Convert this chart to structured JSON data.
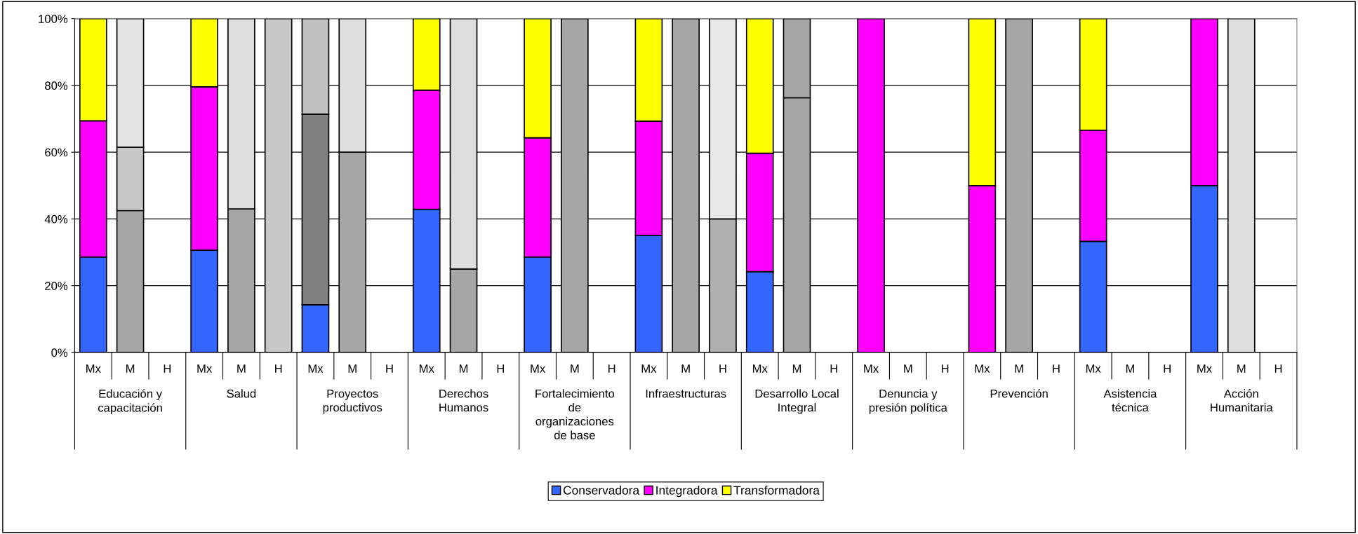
{
  "chart_data": {
    "type": "bar",
    "stacked": true,
    "categories": [
      "Mx",
      "M",
      "H",
      "Mx",
      "M",
      "H",
      "Mx",
      "M",
      "H",
      "Mx",
      "M",
      "H",
      "Mx",
      "M",
      "H",
      "Mx",
      "M",
      "H",
      "Mx",
      "M",
      "H",
      "Mx",
      "M",
      "H",
      "Mx",
      "M",
      "H",
      "Mx",
      "M",
      "H",
      "Mx",
      "M",
      "H"
    ],
    "annotations": [
      "Educación y\ncapacitación",
      "Salud",
      "Proyectos\nproductivos",
      "Derechos\nHumanos",
      "Fortalecimiento\nde\norganizaciones\nde base",
      "Infraestructuras",
      "Desarrollo Local\nIntegral",
      "Denuncia y\npresión política",
      "Prevención",
      "Asistencia\ntécnica",
      "Acción\nHumanitaria"
    ],
    "series": [
      {
        "name": "Conservadora",
        "color": "#3366ff",
        "values": [
          28.6,
          42.5,
          null,
          30.6,
          43,
          100,
          14.3,
          60,
          null,
          42.9,
          25,
          null,
          28.6,
          100,
          null,
          35.1,
          100,
          40,
          24.2,
          76.3,
          null,
          null,
          null,
          null,
          null,
          100,
          null,
          33.3,
          null,
          null,
          50,
          null,
          null
        ],
        "colors": [
          "#3366ff",
          "#a6a6a6",
          "#b0b0b0",
          "#3366ff",
          "#a6a6a6",
          "#c8c8c8",
          "#3366ff",
          "#a6a6a6",
          "#b0b0b0",
          "#3366ff",
          "#a6a6a6",
          "#b0b0b0",
          "#3366ff",
          "#a6a6a6",
          "#b0b0b0",
          "#3366ff",
          "#a6a6a6",
          "#b0b0b0",
          "#3366ff",
          "#a6a6a6",
          "#b0b0b0",
          "#3366ff",
          "#a6a6a6",
          "#b0b0b0",
          "#3366ff",
          "#a6a6a6",
          "#b0b0b0",
          "#3366ff",
          "#a6a6a6",
          "#b0b0b0",
          "#3366ff",
          "#a6a6a6",
          "#b0b0b0"
        ]
      },
      {
        "name": "Integradora",
        "color": "#ff00ff",
        "values": [
          40.8,
          19,
          null,
          49,
          57,
          null,
          57.1,
          40,
          null,
          35.7,
          75,
          null,
          35.7,
          null,
          null,
          34.2,
          null,
          60,
          35.5,
          23.7,
          null,
          100,
          null,
          null,
          50,
          null,
          null,
          33.3,
          null,
          null,
          50,
          100,
          null
        ],
        "colors": [
          "#ff00ff",
          "#c8c8c8",
          "#e8e8e8",
          "#ff00ff",
          "#dddddd",
          "#e8e8e8",
          "#808080",
          "#dddddd",
          "#e8e8e8",
          "#ff00ff",
          "#dddddd",
          "#e8e8e8",
          "#ff00ff",
          "#dddddd",
          "#e8e8e8",
          "#ff00ff",
          "#dddddd",
          "#e8e8e8",
          "#ff00ff",
          "#a6a6a6",
          "#e8e8e8",
          "#ff00ff",
          "#dddddd",
          "#e8e8e8",
          "#ff00ff",
          "#dddddd",
          "#e8e8e8",
          "#ff00ff",
          "#dddddd",
          "#e8e8e8",
          "#ff00ff",
          "#dddddd",
          "#e8e8e8"
        ]
      },
      {
        "name": "Transformadora",
        "color": "#ffff00",
        "values": [
          30.6,
          38.5,
          null,
          20.4,
          null,
          null,
          28.6,
          null,
          null,
          21.4,
          null,
          null,
          35.7,
          null,
          null,
          30.7,
          null,
          null,
          40.3,
          null,
          null,
          null,
          null,
          null,
          50,
          null,
          null,
          33.4,
          null,
          null,
          null,
          null,
          null
        ],
        "colors": [
          "#ffff00",
          "#e4e4e4",
          "#f0f0f0",
          "#ffff00",
          "#e4e4e4",
          "#f0f0f0",
          "#c0c0c0",
          "#e4e4e4",
          "#f0f0f0",
          "#ffff00",
          "#e4e4e4",
          "#f0f0f0",
          "#ffff00",
          "#e4e4e4",
          "#f0f0f0",
          "#ffff00",
          "#e4e4e4",
          "#f0f0f0",
          "#ffff00",
          "#e4e4e4",
          "#f0f0f0",
          "#ffff00",
          "#e4e4e4",
          "#f0f0f0",
          "#ffff00",
          "#e4e4e4",
          "#f0f0f0",
          "#ffff00",
          "#e4e4e4",
          "#f0f0f0",
          "#ffff00",
          "#e4e4e4",
          "#f0f0f0"
        ]
      }
    ],
    "ylim": [
      0,
      100
    ],
    "yticks": [
      {
        "value": 0,
        "label": "0%"
      },
      {
        "value": 20,
        "label": "20%"
      },
      {
        "value": 40,
        "label": "40%"
      },
      {
        "value": 60,
        "label": "60%"
      },
      {
        "value": 80,
        "label": "80%"
      },
      {
        "value": 100,
        "label": "100%"
      }
    ],
    "grid": "y",
    "legend": "bottom"
  }
}
